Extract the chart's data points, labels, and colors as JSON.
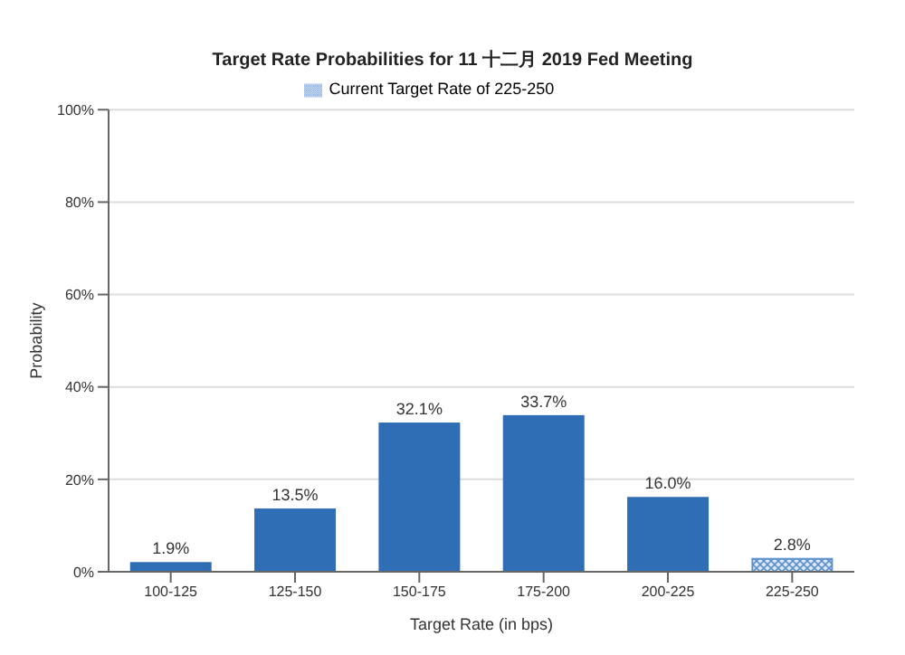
{
  "chart_data": {
    "type": "bar",
    "title": "Target Rate Probabilities for 11 十二月 2019 Fed Meeting",
    "xlabel": "Target Rate (in bps)",
    "ylabel": "Probability",
    "categories": [
      "100-125",
      "125-150",
      "150-175",
      "175-200",
      "200-225",
      "225-250"
    ],
    "stacked": true,
    "series": [
      {
        "color": "#2f6eb5",
        "values": [
          1.9,
          13.5,
          32.1,
          33.7,
          16.0,
          null
        ],
        "value_labels": [
          "1.9%",
          "13.5%",
          "32.1%",
          "33.7%",
          "16.0%",
          null
        ]
      },
      {
        "name": "Current Target Rate of 225-250",
        "color": "#5b8fd0",
        "values": [
          null,
          null,
          null,
          null,
          null,
          2.8
        ],
        "value_labels": [
          null,
          null,
          null,
          null,
          null,
          "2.8%"
        ]
      }
    ],
    "ylim": [
      0,
      100
    ],
    "yticks": [
      {
        "value": 0,
        "label": "0%"
      },
      {
        "value": 20,
        "label": "20%"
      },
      {
        "value": 40,
        "label": "40%"
      },
      {
        "value": 60,
        "label": "60%"
      },
      {
        "value": 80,
        "label": "80%"
      },
      {
        "value": 100,
        "label": "100%"
      }
    ],
    "grid": "y",
    "legend": "top"
  }
}
